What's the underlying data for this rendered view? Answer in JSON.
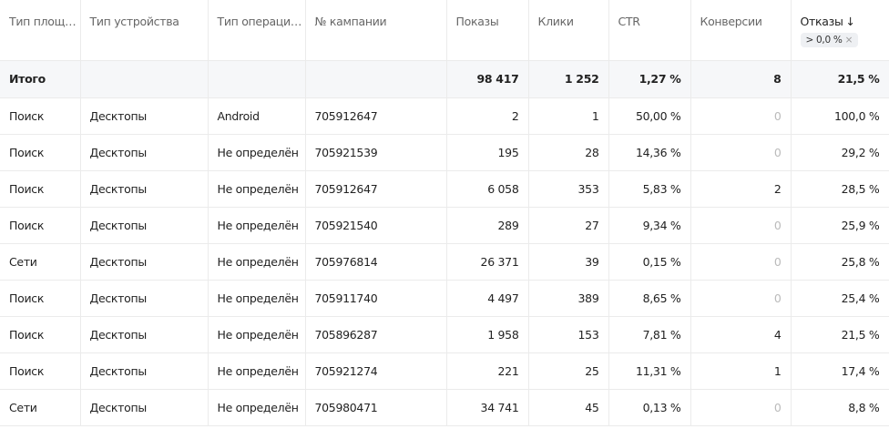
{
  "table": {
    "columns": [
      "Тип площ…",
      "Тип устройства",
      "Тип операци…",
      "№ кампании",
      "Показы",
      "Клики",
      "CTR",
      "Конверсии",
      "Отказы"
    ],
    "sort_indicator": "↓",
    "filter": "> 0,0 %",
    "total": {
      "label": "Итого",
      "shows": "98 417",
      "clicks": "1 252",
      "ctr": "1,27 %",
      "conversions": "8",
      "bounces": "21,5 %"
    },
    "rows": [
      [
        "Поиск",
        "Десктопы",
        "Android",
        "705912647",
        "2",
        "1",
        "50,00 %",
        "0",
        "100,0 %"
      ],
      [
        "Поиск",
        "Десктопы",
        "Не определён",
        "705921539",
        "195",
        "28",
        "14,36 %",
        "0",
        "29,2 %"
      ],
      [
        "Поиск",
        "Десктопы",
        "Не определён",
        "705912647",
        "6 058",
        "353",
        "5,83 %",
        "2",
        "28,5 %"
      ],
      [
        "Поиск",
        "Десктопы",
        "Не определён",
        "705921540",
        "289",
        "27",
        "9,34 %",
        "0",
        "25,9 %"
      ],
      [
        "Сети",
        "Десктопы",
        "Не определён",
        "705976814",
        "26 371",
        "39",
        "0,15 %",
        "0",
        "25,8 %"
      ],
      [
        "Поиск",
        "Десктопы",
        "Не определён",
        "705911740",
        "4 497",
        "389",
        "8,65 %",
        "0",
        "25,4 %"
      ],
      [
        "Поиск",
        "Десктопы",
        "Не определён",
        "705896287",
        "1 958",
        "153",
        "7,81 %",
        "4",
        "21,5 %"
      ],
      [
        "Поиск",
        "Десктопы",
        "Не определён",
        "705921274",
        "221",
        "25",
        "11,31 %",
        "1",
        "17,4 %"
      ],
      [
        "Сети",
        "Десктопы",
        "Не определён",
        "705980471",
        "34 741",
        "45",
        "0,13 %",
        "0",
        "8,8 %"
      ]
    ]
  }
}
